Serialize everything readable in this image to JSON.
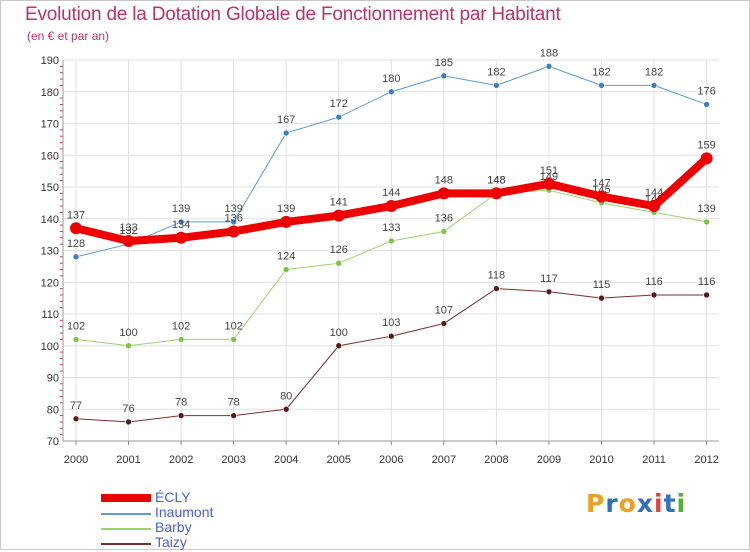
{
  "header": {
    "title": "Evolution de la Dotation Globale de Fonctionnement par Habitant",
    "subtitle": "(en € et par an)"
  },
  "logo": {
    "text": "Proxiti",
    "colors": [
      "#f0a020",
      "#3070c0",
      "#f0a020",
      "#3070c0",
      "#e04040",
      "#3070c0",
      "#50b030"
    ]
  },
  "chart_data": {
    "type": "line",
    "x": [
      "2000",
      "2001",
      "2002",
      "2003",
      "2004",
      "2005",
      "2006",
      "2007",
      "2008",
      "2009",
      "2010",
      "2011",
      "2012"
    ],
    "ylim": [
      70,
      190
    ],
    "yticks": [
      "70",
      "80",
      "90",
      "100",
      "110",
      "120",
      "130",
      "140",
      "150",
      "160",
      "170",
      "180",
      "190"
    ],
    "grid": true,
    "legend_position": "bottom-left",
    "series": [
      {
        "name": "Inaumont",
        "color": "#5b9bd5",
        "marker": "#3a7fc0",
        "width": 1,
        "values": [
          128,
          132,
          139,
          139,
          167,
          172,
          180,
          185,
          182,
          188,
          182,
          182,
          176
        ],
        "labels": [
          "128",
          "132",
          "139",
          "139",
          "167",
          "172",
          "180",
          "185",
          "182",
          "188",
          "182",
          "182",
          "176"
        ]
      },
      {
        "name": "Barby",
        "color": "#9ed36a",
        "marker": "#7cc441",
        "width": 1,
        "values": [
          102,
          100,
          102,
          102,
          124,
          126,
          133,
          136,
          148,
          149,
          145,
          142,
          139
        ],
        "labels": [
          "102",
          "100",
          "102",
          "102",
          "124",
          "126",
          "133",
          "136",
          "148",
          "149",
          "145",
          "142",
          "139"
        ]
      },
      {
        "name": "Taizy",
        "color": "#7a2e2e",
        "marker": "#5a1818",
        "width": 1,
        "values": [
          77,
          76,
          78,
          78,
          80,
          100,
          103,
          107,
          118,
          117,
          115,
          116,
          116
        ],
        "labels": [
          "77",
          "76",
          "78",
          "78",
          "80",
          "100",
          "103",
          "107",
          "118",
          "117",
          "115",
          "116",
          "116"
        ]
      },
      {
        "name": "ÉCLY",
        "color": "#ee0000",
        "marker": "#ee0000",
        "width": 8,
        "values": [
          137,
          133,
          134,
          136,
          139,
          141,
          144,
          148,
          148,
          151,
          147,
          144,
          159
        ],
        "labels": [
          "137",
          "133",
          "134",
          "136",
          "139",
          "141",
          "144",
          "148",
          "148",
          "151",
          "147",
          "144",
          "159"
        ]
      }
    ],
    "legend": [
      "ÉCLY",
      "Inaumont",
      "Barby",
      "Taizy"
    ]
  }
}
